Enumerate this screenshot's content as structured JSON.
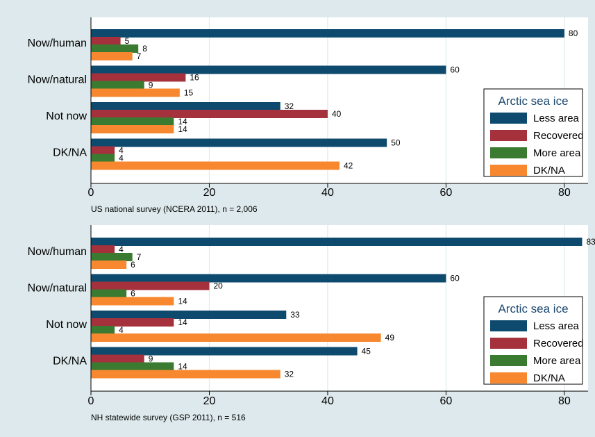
{
  "chart_data": [
    {
      "type": "bar",
      "orientation": "horizontal",
      "categories": [
        "Now/human",
        "Now/natural",
        "Not now",
        "DK/NA"
      ],
      "series": [
        {
          "name": "Less area",
          "values": [
            80,
            60,
            32,
            50
          ],
          "color": "#0d4a6e"
        },
        {
          "name": "Recovered",
          "values": [
            5,
            16,
            40,
            4
          ],
          "color": "#a5313d"
        },
        {
          "name": "More area",
          "values": [
            8,
            9,
            14,
            4
          ],
          "color": "#3a7a31"
        },
        {
          "name": "DK/NA",
          "values": [
            7,
            15,
            14,
            42
          ],
          "color": "#f7882f"
        }
      ],
      "xlim": [
        0,
        84
      ],
      "xticks": [
        0,
        20,
        40,
        60,
        80
      ],
      "xtick_labels": [
        "0",
        "20",
        "40",
        "60",
        "80"
      ],
      "note": "US national survey (NCERA  2011), n = 2,006",
      "legend_title": "Arctic sea ice",
      "legend_position": "bottom-right",
      "grid": true
    },
    {
      "type": "bar",
      "orientation": "horizontal",
      "categories": [
        "Now/human",
        "Now/natural",
        "Not now",
        "DK/NA"
      ],
      "series": [
        {
          "name": "Less area",
          "values": [
            83,
            60,
            33,
            45
          ],
          "color": "#0d4a6e"
        },
        {
          "name": "Recovered",
          "values": [
            4,
            20,
            14,
            9
          ],
          "color": "#a5313d"
        },
        {
          "name": "More area",
          "values": [
            7,
            6,
            4,
            14
          ],
          "color": "#3a7a31"
        },
        {
          "name": "DK/NA",
          "values": [
            6,
            14,
            49,
            32
          ],
          "color": "#f7882f"
        }
      ],
      "xlim": [
        0,
        84
      ],
      "xticks": [
        0,
        20,
        40,
        60,
        80
      ],
      "xtick_labels": [
        "0",
        "20",
        "40",
        "60",
        "80"
      ],
      "note": "NH statewide survey (GSP  2011), n = 516",
      "legend_title": "Arctic sea ice",
      "legend_position": "bottom-right",
      "grid": true
    }
  ]
}
